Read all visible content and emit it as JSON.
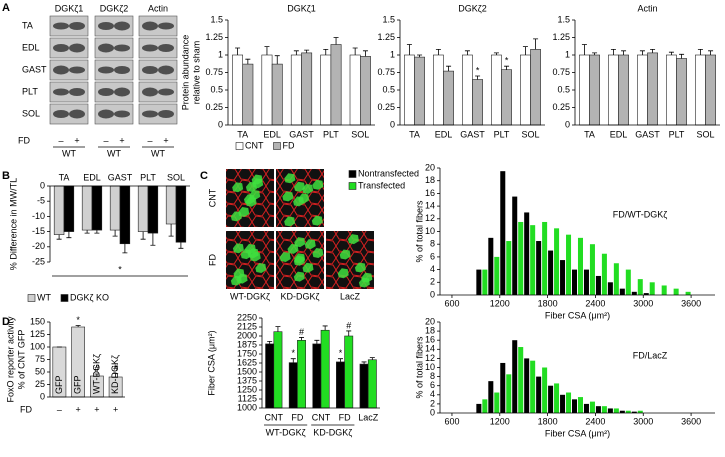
{
  "panel_labels": [
    "A",
    "B",
    "C",
    "D"
  ],
  "blots": {
    "columns": [
      "DGKζ1",
      "DGKζ2",
      "Actin"
    ],
    "rows": [
      "TA",
      "EDL",
      "GAST",
      "PLT",
      "SOL"
    ],
    "condition_label": "FD",
    "condition_values": [
      "–",
      "+"
    ],
    "genotype": "WT"
  },
  "images": {
    "rows": [
      "CNT",
      "FD"
    ],
    "columns": [
      "WT-DGKζ",
      "KD-DGKζ",
      "LacZ"
    ]
  },
  "chart_data": [
    {
      "type": "bar",
      "title": "DGKζ1",
      "ylabel": [
        "Protein abundance",
        "relative to sham"
      ],
      "categories": [
        "TA",
        "EDL",
        "GAST",
        "PLT",
        "SOL"
      ],
      "series": [
        {
          "name": "CNT",
          "color": "#ffffff",
          "values": [
            1,
            1,
            1,
            1,
            1
          ],
          "errors": [
            0.1,
            0.12,
            0.06,
            0.08,
            0.1
          ]
        },
        {
          "name": "FD",
          "color": "#b3b3b3",
          "values": [
            0.87,
            0.87,
            1.03,
            1.15,
            0.98
          ],
          "errors": [
            0.07,
            0.12,
            0.04,
            0.1,
            0.08
          ]
        }
      ],
      "ylim": [
        0,
        1.5
      ],
      "yticks": [
        0,
        0.25,
        0.5,
        0.75,
        1,
        1.25,
        1.5
      ],
      "legend": "bottom"
    },
    {
      "type": "bar",
      "title": "DGKζ2",
      "categories": [
        "TA",
        "EDL",
        "GAST",
        "PLT",
        "SOL"
      ],
      "series": [
        {
          "color": "#ffffff",
          "values": [
            1,
            1,
            1,
            1,
            1
          ],
          "errors": [
            0.15,
            0.08,
            0.06,
            0.03,
            0.12
          ]
        },
        {
          "color": "#b3b3b3",
          "values": [
            0.97,
            0.77,
            0.65,
            0.79,
            1.08
          ],
          "errors": [
            0.03,
            0.07,
            0.05,
            0.05,
            0.15
          ],
          "markers": [
            null,
            null,
            "*",
            "*",
            null
          ]
        }
      ],
      "ylim": [
        0,
        1.5
      ],
      "yticks": [
        0,
        0.25,
        0.5,
        0.75,
        1,
        1.25,
        1.5
      ]
    },
    {
      "type": "bar",
      "title": "Actin",
      "categories": [
        "TA",
        "EDL",
        "GAST",
        "PLT",
        "SOL"
      ],
      "series": [
        {
          "color": "#ffffff",
          "values": [
            1,
            1,
            1,
            1,
            1
          ],
          "errors": [
            0.15,
            0.08,
            0.06,
            0.04,
            0.08
          ]
        },
        {
          "color": "#b3b3b3",
          "values": [
            1,
            1,
            1.03,
            0.95,
            1
          ],
          "errors": [
            0.03,
            0.06,
            0.05,
            0.06,
            0.06
          ]
        }
      ],
      "ylim": [
        0,
        1.5
      ],
      "yticks": [
        0,
        0.25,
        0.5,
        0.75,
        1,
        1.25,
        1.5
      ]
    },
    {
      "type": "bar",
      "ylabel": "% Difference in MW/TL",
      "categories": [
        "TA",
        "EDL",
        "GAST",
        "PLT",
        "SOL"
      ],
      "category_axis": "top",
      "series": [
        {
          "name": "WT",
          "color": "#d0d0d0",
          "values": [
            -16,
            -14.5,
            -14.5,
            -15,
            -12.5
          ],
          "errors": [
            1.5,
            1,
            2,
            2.5,
            4
          ]
        },
        {
          "name": "DGKζ KO",
          "color": "#000000",
          "values": [
            -15,
            -14.5,
            -19,
            -15.5,
            -18.5
          ],
          "errors": [
            2,
            1,
            3,
            4,
            2
          ]
        }
      ],
      "ylim": [
        -25,
        0
      ],
      "yticks": [
        -25,
        -20,
        -15,
        -10,
        -5,
        0
      ],
      "annotation": "*",
      "legend": "bottom"
    },
    {
      "type": "bar",
      "ylabel": "Fiber CSA (μm²)",
      "categories": [
        "CNT",
        "FD",
        "CNT",
        "FD",
        "LacZ"
      ],
      "groups": [
        "WT-DGKζ",
        "WT-DGKζ",
        "KD-DGKζ",
        "KD-DGKζ",
        null
      ],
      "series": [
        {
          "name": "Nontransfected",
          "color": "#000000",
          "values": [
            1890,
            1630,
            1890,
            1640,
            1610
          ],
          "errors": [
            35,
            55,
            50,
            45,
            30
          ],
          "markers": [
            null,
            "*",
            null,
            "*",
            null
          ]
        },
        {
          "name": "Transfected",
          "color": "#22dd22",
          "values": [
            2060,
            1940,
            2080,
            2000,
            1670
          ],
          "errors": [
            70,
            40,
            60,
            70,
            30
          ],
          "markers": [
            null,
            "#",
            null,
            "#",
            null
          ]
        }
      ],
      "ylim": [
        1000,
        2250
      ],
      "yticks": [
        1000,
        1125,
        1250,
        1375,
        1500,
        1625,
        1750,
        1875,
        2000,
        2125,
        2250
      ],
      "legend": "top-left"
    },
    {
      "type": "histogram",
      "annotation": "FD/WT-DGKζ",
      "xlabel": "Fiber CSA (μm²)",
      "ylabel": "% of total fibers",
      "bins": [
        900,
        1050,
        1200,
        1350,
        1500,
        1650,
        1800,
        1950,
        2100,
        2250,
        2400,
        2550,
        2700,
        2850,
        3000,
        3150,
        3300,
        3450,
        3600
      ],
      "series": [
        {
          "color": "#000000",
          "values": [
            4,
            9,
            19.5,
            15.5,
            13,
            8.5,
            7,
            5.5,
            4,
            4,
            3,
            2,
            1,
            0.5,
            0.3,
            0,
            0,
            0
          ]
        },
        {
          "color": "#22dd22",
          "values": [
            4,
            6,
            8.5,
            11.5,
            11,
            11.5,
            10.5,
            9.5,
            9,
            8,
            6.5,
            5,
            4,
            2.5,
            2,
            1.5,
            1,
            0.5
          ]
        }
      ],
      "xlim": [
        450,
        3900
      ],
      "xticks": [
        600,
        1200,
        1800,
        2400,
        3000,
        3600
      ],
      "ylim": [
        0,
        20
      ],
      "yticks": [
        0,
        2,
        4,
        6,
        8,
        10,
        12,
        14,
        16,
        18,
        20
      ]
    },
    {
      "type": "histogram",
      "annotation": "FD/LacZ",
      "xlabel": "Fiber CSA (μm²)",
      "ylabel": "% of total fibers",
      "bins": [
        900,
        1050,
        1200,
        1350,
        1500,
        1650,
        1800,
        1950,
        2100,
        2250,
        2400,
        2550,
        2700,
        2850,
        3000,
        3150,
        3300,
        3450,
        3600
      ],
      "series": [
        {
          "color": "#000000",
          "values": [
            2,
            7,
            11,
            16,
            12,
            8,
            6,
            4,
            3,
            2,
            1.5,
            1,
            0.5,
            0.3,
            0,
            0,
            0,
            0
          ]
        },
        {
          "color": "#22dd22",
          "values": [
            3,
            4.5,
            8.5,
            14.5,
            11.5,
            10,
            6.5,
            4.5,
            3.5,
            2.5,
            1.5,
            1,
            0.5,
            0.5,
            0,
            0,
            0,
            0
          ]
        }
      ],
      "xlim": [
        450,
        3900
      ],
      "xticks": [
        600,
        1200,
        1800,
        2400,
        3000,
        3600
      ],
      "ylim": [
        0,
        20
      ],
      "yticks": [
        0,
        2,
        4,
        6,
        8,
        10,
        12,
        14,
        16,
        18,
        20
      ]
    },
    {
      "type": "bar",
      "ylabel": [
        "FoxO reporter activity",
        "% of CNT GFP"
      ],
      "categories": [
        "GFP",
        "GFP",
        "WT-DGKζ",
        "KD-DGKζ"
      ],
      "category_axis": "inside",
      "conditions": {
        "label": "FD",
        "values": [
          "–",
          "+",
          "+",
          "+"
        ]
      },
      "series": [
        {
          "color": "#d9d9d9",
          "values": [
            100,
            140,
            42,
            40
          ],
          "errors": [
            0,
            3,
            4,
            7
          ],
          "markers": [
            null,
            "*",
            "#",
            "#"
          ]
        }
      ],
      "ylim": [
        0,
        150
      ],
      "yticks": [
        0,
        25,
        50,
        75,
        100,
        125,
        150
      ]
    }
  ]
}
